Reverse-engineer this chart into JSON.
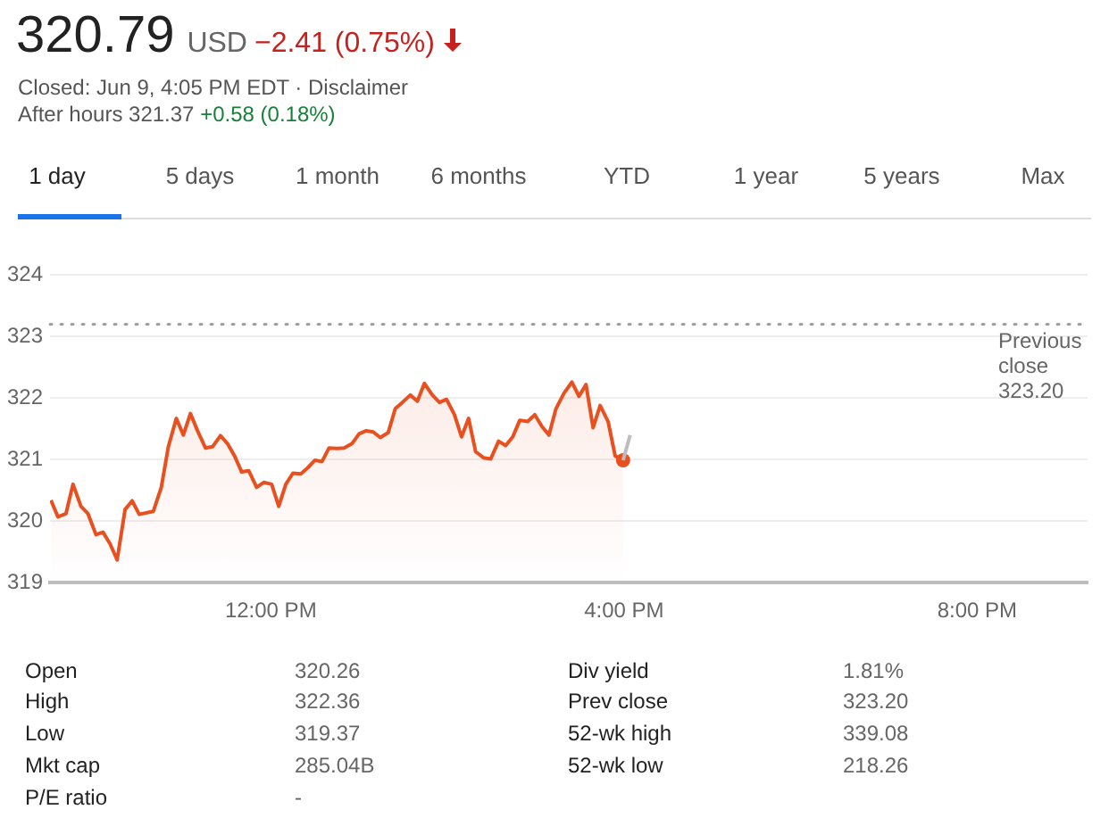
{
  "chart_data": {
    "type": "line",
    "title": "320.79",
    "series": [
      {
        "type": "area",
        "color": "#e8501f",
        "x": [
          9.51,
          9.59,
          9.68,
          9.76,
          9.85,
          9.93,
          10.02,
          10.1,
          10.18,
          10.26,
          10.35,
          10.43,
          10.51,
          10.67,
          10.76,
          10.84,
          10.93,
          11.01,
          11.09,
          11.17,
          11.26,
          11.34,
          11.43,
          11.51,
          11.59,
          11.67,
          11.75,
          11.84,
          11.92,
          12.01,
          12.09,
          12.17,
          12.25,
          12.34,
          12.42,
          12.5,
          12.58,
          12.66,
          12.75,
          12.83,
          12.92,
          13,
          13.08,
          13.16,
          13.24,
          13.33,
          13.41,
          13.49,
          13.58,
          13.66,
          13.74,
          13.83,
          13.91,
          13.99,
          14.08,
          14.16,
          14.24,
          14.32,
          14.41,
          14.49,
          14.58,
          14.66,
          14.74,
          14.82,
          14.91,
          14.99,
          15.07,
          15.15,
          15.23,
          15.32,
          15.41,
          15.49,
          15.57,
          15.65,
          15.73,
          15.82,
          15.9,
          15.99
        ],
        "values": [
          320.34,
          320.07,
          320.12,
          320.6,
          320.24,
          320.12,
          319.78,
          319.82,
          319.63,
          319.37,
          320.19,
          320.33,
          320.11,
          320.16,
          320.55,
          321.21,
          321.67,
          321.4,
          321.75,
          321.47,
          321.19,
          321.21,
          321.39,
          321.26,
          321.06,
          320.8,
          320.82,
          320.55,
          320.63,
          320.6,
          320.24,
          320.6,
          320.78,
          320.77,
          320.87,
          320.99,
          320.97,
          321.19,
          321.18,
          321.19,
          321.26,
          321.42,
          321.47,
          321.45,
          321.36,
          321.44,
          321.83,
          321.93,
          322.05,
          321.95,
          322.24,
          322.05,
          321.93,
          321.98,
          321.73,
          321.37,
          321.67,
          321.13,
          321.03,
          321.01,
          321.3,
          321.23,
          321.37,
          321.64,
          321.62,
          321.73,
          321.54,
          321.4,
          321.83,
          322.08,
          322.26,
          322.03,
          322.22,
          321.52,
          321.88,
          321.62,
          321.06,
          320.99
        ]
      },
      {
        "type": "line",
        "color": "#bdbdbd",
        "x": [
          15.99,
          16.07
        ],
        "values": [
          320.99,
          321.4
        ]
      }
    ],
    "xlim": [
      9.5,
      21.25
    ],
    "xticks": [
      {
        "value": 12,
        "label": "12:00 PM"
      },
      {
        "value": 16,
        "label": "4:00 PM"
      },
      {
        "value": 20,
        "label": "8:00 PM"
      }
    ],
    "ylim": [
      319,
      324
    ],
    "yticks": [
      319,
      320,
      321,
      322,
      323,
      324
    ],
    "grid": "y",
    "marker": "none",
    "line_style": "solid",
    "ref_lines": [
      {
        "axis": "y",
        "value": 323.2,
        "label": "Previous close 323.20",
        "line_style": "dotted",
        "color": "#9e9e9e"
      }
    ],
    "annotations": [
      "USD",
      "−2.41 (0.75%)",
      "Closed: Jun 9, 4:05 PM EDT · Disclaimer",
      "After hours 321.37",
      "+0.58 (0.18%)",
      "1 day",
      "5 days",
      "1 month",
      "6 months",
      "YTD",
      "1 year",
      "5 years",
      "Max",
      "Open",
      "320.26",
      "High",
      "322.36",
      "Low",
      "319.37",
      "Mkt cap",
      "285.04B",
      "P/E ratio",
      "-",
      "Div yield",
      "1.81%",
      "Prev close",
      "323.20",
      "52-wk high",
      "339.08",
      "52-wk low",
      "218.26"
    ]
  }
}
